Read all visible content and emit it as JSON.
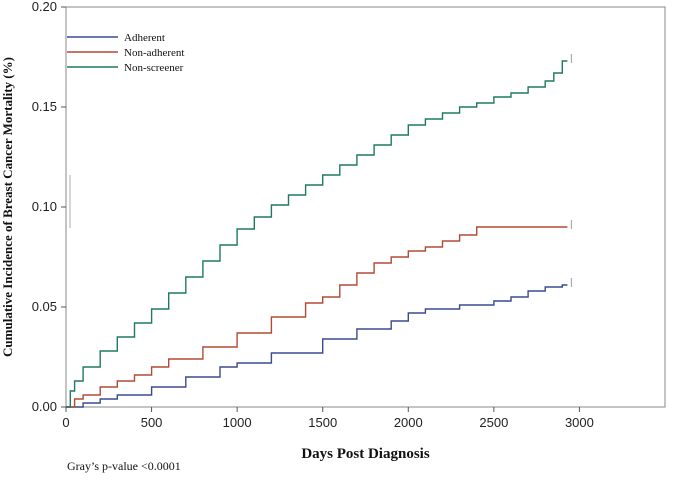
{
  "chart_data": {
    "type": "line",
    "step": true,
    "title": "",
    "xlabel": "Days Post Diagnosis",
    "ylabel": "Cumulative Incidence of Breast Cancer Mortality (%)",
    "xlim": [
      0,
      3500
    ],
    "ylim": [
      0,
      0.2
    ],
    "xticks": [
      0,
      500,
      1000,
      1500,
      2000,
      2500,
      3000
    ],
    "yticks": [
      0.0,
      0.05,
      0.1,
      0.15,
      0.2
    ],
    "ytick_labels": [
      "0.00",
      "0.05",
      "0.10",
      "0.15",
      "0.20"
    ],
    "legend_position": "top-left",
    "series": [
      {
        "name": "Adherent",
        "color": "#3b4a8f",
        "x": [
          0,
          100,
          200,
          300,
          500,
          700,
          900,
          1000,
          1200,
          1500,
          1700,
          1900,
          2000,
          2100,
          2300,
          2500,
          2600,
          2700,
          2800,
          2900,
          2930
        ],
        "y": [
          0.0,
          0.002,
          0.004,
          0.006,
          0.01,
          0.015,
          0.02,
          0.022,
          0.027,
          0.034,
          0.039,
          0.043,
          0.047,
          0.049,
          0.051,
          0.053,
          0.055,
          0.058,
          0.06,
          0.061,
          0.061
        ]
      },
      {
        "name": "Non-adherent",
        "color": "#b34a35",
        "x": [
          0,
          50,
          100,
          200,
          300,
          400,
          500,
          600,
          800,
          1000,
          1200,
          1400,
          1500,
          1600,
          1700,
          1800,
          1900,
          2000,
          2100,
          2200,
          2300,
          2400,
          2600,
          2800,
          2930
        ],
        "y": [
          0.0,
          0.004,
          0.006,
          0.01,
          0.013,
          0.016,
          0.02,
          0.024,
          0.03,
          0.037,
          0.045,
          0.052,
          0.055,
          0.061,
          0.067,
          0.072,
          0.075,
          0.078,
          0.08,
          0.083,
          0.086,
          0.09,
          0.09,
          0.09,
          0.09
        ]
      },
      {
        "name": "Non-screener",
        "color": "#1e7a60",
        "x": [
          0,
          25,
          50,
          100,
          200,
          300,
          400,
          500,
          600,
          700,
          800,
          900,
          1000,
          1100,
          1200,
          1300,
          1400,
          1500,
          1600,
          1700,
          1800,
          1900,
          2000,
          2100,
          2200,
          2300,
          2400,
          2500,
          2600,
          2700,
          2800,
          2850,
          2900,
          2930
        ],
        "y": [
          0.0,
          0.008,
          0.013,
          0.02,
          0.028,
          0.035,
          0.042,
          0.049,
          0.057,
          0.065,
          0.073,
          0.081,
          0.089,
          0.095,
          0.101,
          0.106,
          0.111,
          0.116,
          0.121,
          0.126,
          0.131,
          0.136,
          0.141,
          0.144,
          0.147,
          0.15,
          0.152,
          0.155,
          0.157,
          0.16,
          0.163,
          0.167,
          0.173,
          0.173
        ]
      }
    ],
    "annotation": "Gray’s p-value <0.0001"
  }
}
